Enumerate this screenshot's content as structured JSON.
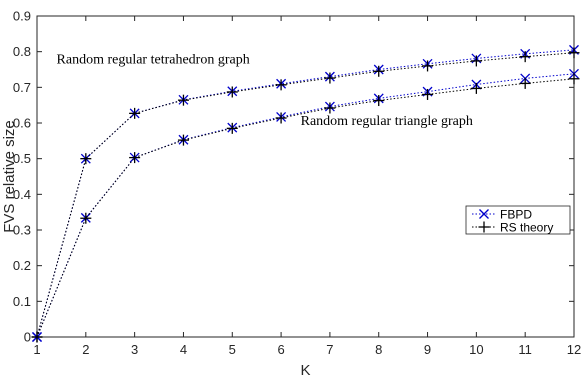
{
  "chart_data": {
    "type": "line",
    "title": "",
    "xlabel": "K",
    "ylabel": "FVS relative size",
    "xlim": [
      1,
      12
    ],
    "ylim": [
      0,
      0.9
    ],
    "xticks": [
      1,
      2,
      3,
      4,
      5,
      6,
      7,
      8,
      9,
      10,
      11,
      12
    ],
    "yticks": [
      0,
      0.1,
      0.2,
      0.3,
      0.4,
      0.5,
      0.6,
      0.7,
      0.8,
      0.9
    ],
    "ytick_labels": [
      "0",
      "0.1",
      "0.2",
      "0.3",
      "0.4",
      "0.5",
      "0.6",
      "0.7",
      "0.8",
      "0.9"
    ],
    "grid": false,
    "legend_position": "right",
    "series": [
      {
        "name": "FBPD",
        "group": "Random regular tetrahedron graph",
        "marker": "x",
        "color": "#0000cc",
        "x": [
          1,
          2,
          3,
          4,
          5,
          6,
          7,
          8,
          9,
          10,
          11,
          12
        ],
        "values": [
          0,
          0.5,
          0.627,
          0.665,
          0.689,
          0.71,
          0.73,
          0.75,
          0.766,
          0.781,
          0.794,
          0.805
        ]
      },
      {
        "name": "RS theory",
        "group": "Random regular tetrahedron graph",
        "marker": "+",
        "color": "#000000",
        "x": [
          1,
          2,
          3,
          4,
          5,
          6,
          7,
          8,
          9,
          10,
          11,
          12
        ],
        "values": [
          0,
          0.5,
          0.627,
          0.664,
          0.687,
          0.707,
          0.726,
          0.745,
          0.76,
          0.774,
          0.786,
          0.797
        ]
      },
      {
        "name": "FBPD",
        "group": "Random regular triangle graph",
        "marker": "x",
        "color": "#0000cc",
        "x": [
          1,
          2,
          3,
          4,
          5,
          6,
          7,
          8,
          9,
          10,
          11,
          12
        ],
        "values": [
          0,
          0.334,
          0.503,
          0.553,
          0.587,
          0.617,
          0.646,
          0.669,
          0.688,
          0.708,
          0.725,
          0.738
        ]
      },
      {
        "name": "RS theory",
        "group": "Random regular triangle graph",
        "marker": "+",
        "color": "#000000",
        "x": [
          1,
          2,
          3,
          4,
          5,
          6,
          7,
          8,
          9,
          10,
          11,
          12
        ],
        "values": [
          0,
          0.333,
          0.503,
          0.552,
          0.585,
          0.614,
          0.642,
          0.663,
          0.68,
          0.697,
          0.711,
          0.724
        ]
      }
    ],
    "annotations": [
      {
        "text": "Random regular tetrahedron graph",
        "x": 1.4,
        "y": 0.767
      },
      {
        "text": "Random regular triangle graph",
        "x": 6.4,
        "y": 0.595
      }
    ],
    "legend": [
      {
        "label": "FBPD",
        "marker": "x",
        "color": "#0000cc"
      },
      {
        "label": "RS theory",
        "marker": "+",
        "color": "#000000"
      }
    ]
  }
}
